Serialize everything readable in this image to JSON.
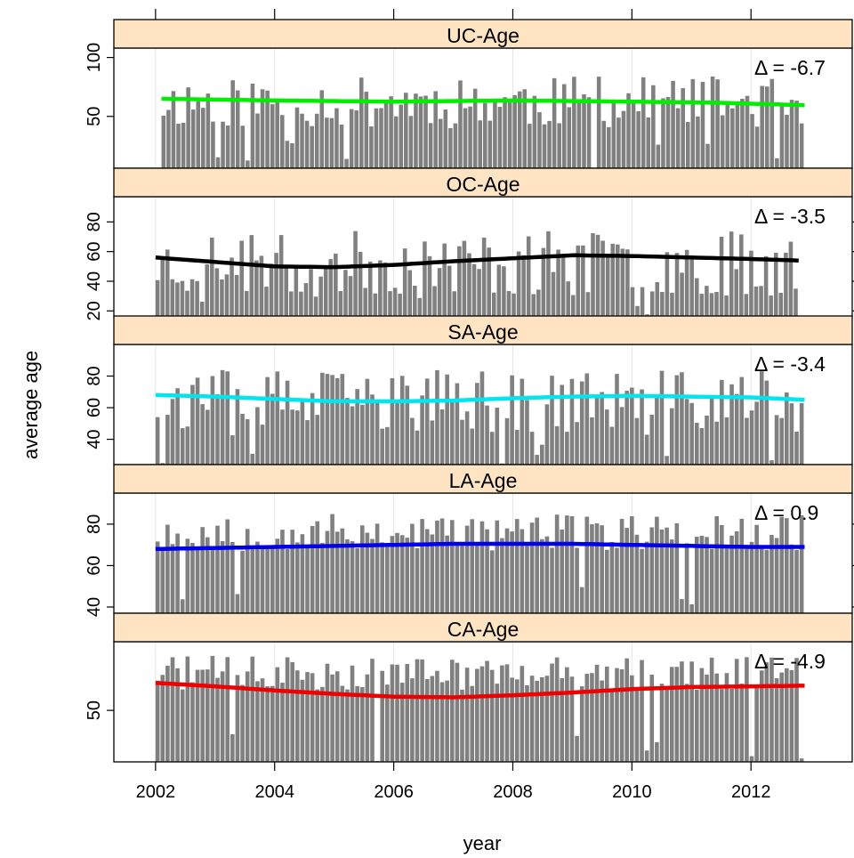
{
  "chart_data": {
    "type": "bar",
    "layout": "stacked-panels",
    "xlabel": "year",
    "ylabel": "average age",
    "xlim": [
      2001.3,
      2013.7
    ],
    "x_ticks": [
      "2002",
      "2004",
      "2006",
      "2008",
      "2010",
      "2012"
    ],
    "x_tick_values": [
      2002,
      2004,
      2006,
      2008,
      2010,
      2012
    ],
    "bar_color": "#808080",
    "strip_color": "#FFE4C4",
    "delta_symbol": "Δ",
    "panels": [
      {
        "name": "UC-Age",
        "delta_label": "= -6.7",
        "ylim": [
          6,
          108
        ],
        "y_ticks": [
          "50",
          "100"
        ],
        "y_tick_values": [
          50,
          100
        ],
        "x_range": [
          2002.1,
          2012.9
        ],
        "line_color": "#00EE00",
        "trend": {
          "x": [
            2002.1,
            2004,
            2006,
            2008,
            2010,
            2011.5,
            2012.9
          ],
          "y": [
            65,
            63.5,
            62.5,
            63.5,
            62.5,
            61.5,
            59.5
          ]
        },
        "bar_seed": 11,
        "bar_mean": 62,
        "bar_spread": 22
      },
      {
        "name": "OC-Age",
        "delta_label": "= -3.5",
        "ylim": [
          16,
          97
        ],
        "y_ticks": [
          "20",
          "40",
          "60",
          "80"
        ],
        "y_tick_values": [
          20,
          40,
          60,
          80
        ],
        "x_range": [
          2002.0,
          2012.8
        ],
        "line_color": "#000000",
        "trend": {
          "x": [
            2002.0,
            2003,
            2004,
            2005,
            2006,
            2007,
            2008,
            2009,
            2010,
            2011,
            2012,
            2012.8
          ],
          "y": [
            56,
            53,
            50,
            49.5,
            51,
            53.5,
            55.5,
            57.5,
            57,
            56,
            55,
            54
          ]
        },
        "bar_seed": 23,
        "bar_mean": 52,
        "bar_spread": 22
      },
      {
        "name": "SA-Age",
        "delta_label": "= -3.4",
        "ylim": [
          24,
          100
        ],
        "y_ticks": [
          "40",
          "60",
          "80"
        ],
        "y_tick_values": [
          40,
          60,
          80
        ],
        "x_range": [
          2002.0,
          2012.9
        ],
        "line_color": "#00E5EE",
        "trend": {
          "x": [
            2002.0,
            2003,
            2004,
            2005,
            2006,
            2007,
            2008,
            2009,
            2010,
            2011,
            2012,
            2012.9
          ],
          "y": [
            68,
            67,
            65.5,
            64,
            64,
            64.5,
            66,
            67,
            67.5,
            67,
            66.5,
            65
          ]
        },
        "bar_seed": 37,
        "bar_mean": 64,
        "bar_spread": 20
      },
      {
        "name": "LA-Age",
        "delta_label": "= 0.9",
        "ylim": [
          37,
          95
        ],
        "y_ticks": [
          "40",
          "60",
          "80"
        ],
        "y_tick_values": [
          40,
          60,
          80
        ],
        "x_range": [
          2002.0,
          2012.9
        ],
        "line_color": "#0000EE",
        "trend": {
          "x": [
            2002.0,
            2003,
            2004,
            2005,
            2006,
            2007,
            2008,
            2009,
            2010,
            2011,
            2012,
            2012.9
          ],
          "y": [
            68,
            68.5,
            69,
            69.5,
            70,
            70.5,
            70.5,
            70.5,
            70,
            69.5,
            69,
            69
          ]
        },
        "bar_seed": 53,
        "bar_mean": 76,
        "bar_spread": 9
      },
      {
        "name": "CA-Age",
        "delta_label": "= -4.9",
        "ylim": [
          42.5,
          60
        ],
        "y_ticks": [
          "50"
        ],
        "y_tick_values": [
          50
        ],
        "x_range": [
          2002.0,
          2012.9
        ],
        "line_color": "#EE0000",
        "trend": {
          "x": [
            2002.0,
            2003,
            2004,
            2005,
            2006,
            2007,
            2008,
            2009,
            2010,
            2011,
            2012,
            2012.9
          ],
          "y": [
            54,
            53.5,
            52.9,
            52.4,
            52,
            51.9,
            52.2,
            52.6,
            53.1,
            53.4,
            53.5,
            53.6
          ]
        },
        "bar_seed": 71,
        "bar_mean": 55.5,
        "bar_spread": 2.5
      }
    ]
  }
}
